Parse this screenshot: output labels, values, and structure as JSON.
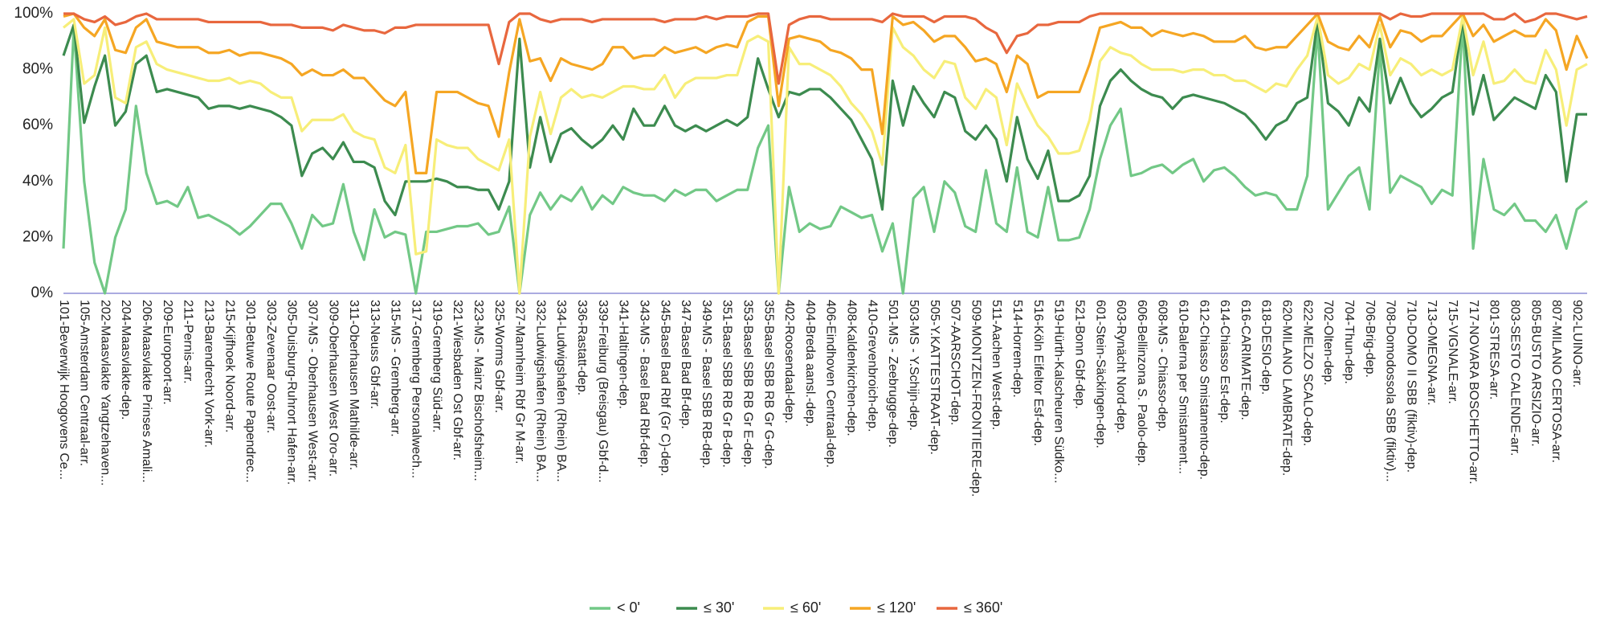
{
  "chart_data": {
    "type": "line",
    "categories": [
      "101-Beverwijk Hoogovens Ce...",
      null,
      "105-Amsterdam Centraal-arr.",
      null,
      "202-Maasvlakte Yangtzehaven...",
      null,
      "204-Maasvlakte-dep.",
      null,
      "206-Maasvlakte Prinses Amali...",
      null,
      "209-Europoort-arr.",
      null,
      "211-Pernis-arr.",
      null,
      "213-Barendrecht Vork-arr.",
      null,
      "215-Kijfhoek Noord-arr.",
      null,
      "301-Betuwe Route Papendrec...",
      null,
      "303-Zevenaar Oost-arr.",
      null,
      "305-Duisburg-Ruhrort Hafen-arr.",
      null,
      "307-MS - Oberhausen West-arr.",
      null,
      "309-Oberhausen West Oro-arr.",
      null,
      "311-Oberhausen Mathilde-arr.",
      null,
      "313-Neuss Gbf-arr.",
      null,
      "315-MS - Gremberg-arr.",
      null,
      "317-Gremberg Personalwech...",
      null,
      "319-Gremberg Süd-arr.",
      null,
      "321-Wiesbaden Ost Gbf-arr.",
      null,
      "323-MS - Mainz Bischofsheim...",
      null,
      "325-Worms Gbf-arr.",
      null,
      "327-Mannheim Rbf Gr M-arr.",
      null,
      "332-Ludwigshafen (Rhein) BA...",
      null,
      "334-Ludwigshafen (Rhein) BA...",
      null,
      "336-Rastatt-dep.",
      null,
      "339-Freiburg (Breisgau) Gbf-d...",
      null,
      "341-Haltingen-dep.",
      null,
      "343-MS - Basel Bad Rbf-dep.",
      null,
      "345-Basel Bad Rbf (Gr C)-dep.",
      null,
      "347-Basel Bad Bf-dep.",
      null,
      "349-MS - Basel SBB RB-dep.",
      null,
      "351-Basel SBB RB Gr B-dep.",
      null,
      "353-Basel SBB RB Gr E-dep.",
      null,
      "355-Basel SBB RB Gr G-dep.",
      null,
      "402-Roosendaal-dep.",
      null,
      "404-Breda aansl.-dep.",
      null,
      "406-Eindhoven Centraal-dep.",
      null,
      "408-Kaldenkirchen-dep.",
      null,
      "410-Grevenbroich-dep.",
      null,
      "501-MS - Zeebrugge-dep.",
      null,
      "503-MS - Y.Schijn-dep.",
      null,
      "505-Y.KATTESTRAAT-dep.",
      null,
      "507-AARSCHOT-dep.",
      null,
      "509-MONTZEN-FRONTIERE-dep.",
      null,
      "511-Aachen West-dep.",
      null,
      "514-Horrem-dep.",
      null,
      "516-Köln Eifeltor Esf-dep.",
      null,
      "519-Hürth-Kalscheuren Südko...",
      null,
      "521-Bonn Gbf-dep.",
      null,
      "601-Stein-Säckingen-dep.",
      null,
      "603-Rynächt Nord-dep.",
      null,
      "606-Bellinzona S. Paolo-dep.",
      null,
      "608-MS - Chiasso-dep.",
      null,
      "610-Balerna per Smistament...",
      null,
      "612-Chiasso Smistamento-dep.",
      null,
      "614-Chiasso Est-dep.",
      null,
      "616-CARIMATE-dep.",
      null,
      "618-DESIO-dep.",
      null,
      "620-MILANO LAMBRATE-dep.",
      null,
      "622-MELZO SCALO-dep.",
      null,
      "702-Olten-dep.",
      null,
      "704-Thun-dep.",
      null,
      "706-Brig-dep.",
      null,
      "708-Domodossola SBB (fiktiv)...",
      null,
      "710-DOMO II SBB (fiktiv)-dep.",
      null,
      "713-OMEGNA-arr.",
      null,
      "715-VIGNALE-arr.",
      null,
      "717-NOVARA BOSCHETTO-arr.",
      null,
      "801-STRESA-arr.",
      null,
      "803-SESTO CALENDE-arr.",
      null,
      "805-BUSTO ARSIZIO-arr.",
      null,
      "807-MILANO CERTOSA-arr.",
      null,
      "902-LUINO-arr.",
      null
    ],
    "series": [
      {
        "name": "< 0'",
        "color": "#72c886",
        "values": [
          16,
          95,
          40,
          11,
          0,
          20,
          30,
          67,
          43,
          32,
          33,
          31,
          38,
          27,
          28,
          26,
          24,
          21,
          24,
          28,
          32,
          32,
          25,
          16,
          28,
          24,
          25,
          39,
          22,
          12,
          30,
          20,
          22,
          21,
          0,
          22,
          22,
          23,
          24,
          24,
          25,
          21,
          22,
          31,
          0,
          28,
          36,
          30,
          35,
          33,
          38,
          30,
          35,
          32,
          38,
          36,
          35,
          35,
          33,
          37,
          35,
          37,
          37,
          33,
          35,
          37,
          37,
          52,
          60,
          0,
          38,
          22,
          25,
          23,
          24,
          31,
          29,
          27,
          28,
          15,
          25,
          0,
          34,
          38,
          22,
          40,
          36,
          24,
          22,
          44,
          25,
          22,
          45,
          22,
          20,
          38,
          19,
          19,
          20,
          30,
          48,
          60,
          66,
          42,
          43,
          45,
          46,
          43,
          46,
          48,
          40,
          44,
          45,
          42,
          38,
          35,
          36,
          35,
          30,
          30,
          42,
          95,
          30,
          36,
          42,
          45,
          30,
          88,
          36,
          42,
          40,
          38,
          32,
          37,
          35,
          97,
          16,
          48,
          30,
          28,
          32,
          26,
          26,
          22,
          28,
          16,
          30,
          33
        ]
      },
      {
        "name": "≤ 30'",
        "color": "#3c8b4f",
        "values": [
          85,
          96,
          61,
          74,
          85,
          60,
          65,
          82,
          85,
          72,
          73,
          72,
          71,
          70,
          66,
          67,
          67,
          66,
          67,
          66,
          65,
          63,
          60,
          42,
          50,
          52,
          48,
          54,
          47,
          47,
          45,
          33,
          28,
          40,
          40,
          40,
          41,
          40,
          38,
          38,
          37,
          37,
          30,
          40,
          91,
          45,
          63,
          47,
          57,
          59,
          55,
          52,
          55,
          60,
          55,
          66,
          60,
          60,
          67,
          60,
          58,
          60,
          58,
          60,
          62,
          60,
          63,
          84,
          73,
          63,
          72,
          71,
          73,
          73,
          70,
          66,
          62,
          55,
          48,
          30,
          76,
          60,
          74,
          68,
          63,
          72,
          70,
          58,
          55,
          60,
          55,
          40,
          63,
          48,
          41,
          51,
          33,
          33,
          35,
          42,
          67,
          76,
          80,
          76,
          73,
          71,
          70,
          66,
          70,
          71,
          70,
          69,
          68,
          66,
          64,
          60,
          55,
          60,
          62,
          68,
          70,
          98,
          68,
          65,
          60,
          70,
          65,
          91,
          68,
          77,
          68,
          63,
          66,
          70,
          72,
          98,
          64,
          78,
          62,
          66,
          70,
          68,
          66,
          78,
          72,
          40,
          64,
          64
        ]
      },
      {
        "name": "≤ 60'",
        "color": "#f7ee79",
        "values": [
          95,
          98,
          75,
          78,
          95,
          70,
          68,
          88,
          90,
          82,
          80,
          79,
          78,
          77,
          76,
          76,
          77,
          75,
          76,
          75,
          72,
          70,
          70,
          58,
          62,
          62,
          62,
          64,
          58,
          56,
          55,
          45,
          43,
          53,
          14,
          15,
          55,
          53,
          52,
          52,
          48,
          46,
          44,
          55,
          0,
          56,
          72,
          57,
          70,
          73,
          70,
          71,
          70,
          72,
          74,
          74,
          73,
          73,
          78,
          70,
          75,
          77,
          77,
          77,
          78,
          78,
          90,
          92,
          90,
          0,
          88,
          82,
          82,
          80,
          78,
          74,
          68,
          64,
          58,
          46,
          95,
          88,
          85,
          80,
          77,
          83,
          82,
          70,
          66,
          73,
          70,
          53,
          75,
          67,
          60,
          56,
          50,
          50,
          51,
          62,
          83,
          88,
          86,
          85,
          82,
          80,
          80,
          80,
          79,
          80,
          80,
          78,
          78,
          76,
          76,
          74,
          72,
          75,
          74,
          80,
          85,
          99,
          78,
          75,
          77,
          82,
          80,
          96,
          78,
          84,
          82,
          78,
          80,
          78,
          80,
          99,
          78,
          90,
          75,
          76,
          80,
          76,
          75,
          87,
          80,
          60,
          80,
          82
        ]
      },
      {
        "name": "≤ 120'",
        "color": "#f5a623",
        "values": [
          99,
          100,
          95,
          92,
          98,
          87,
          86,
          95,
          98,
          90,
          89,
          88,
          88,
          88,
          86,
          86,
          87,
          85,
          86,
          86,
          85,
          84,
          82,
          78,
          80,
          78,
          78,
          80,
          77,
          77,
          73,
          69,
          67,
          72,
          43,
          43,
          72,
          72,
          72,
          70,
          68,
          67,
          56,
          79,
          98,
          83,
          84,
          76,
          84,
          82,
          81,
          80,
          82,
          88,
          88,
          84,
          85,
          85,
          88,
          86,
          87,
          88,
          86,
          88,
          89,
          88,
          97,
          99,
          99,
          67,
          91,
          92,
          91,
          90,
          87,
          86,
          84,
          80,
          80,
          57,
          99,
          96,
          97,
          94,
          90,
          92,
          92,
          88,
          83,
          84,
          82,
          72,
          85,
          82,
          70,
          72,
          72,
          72,
          72,
          82,
          95,
          96,
          97,
          95,
          95,
          92,
          94,
          93,
          92,
          93,
          92,
          90,
          90,
          90,
          92,
          88,
          87,
          88,
          88,
          92,
          96,
          100,
          90,
          88,
          87,
          92,
          88,
          99,
          88,
          94,
          93,
          90,
          92,
          92,
          96,
          100,
          92,
          96,
          90,
          92,
          94,
          92,
          92,
          98,
          94,
          80,
          92,
          84
        ]
      },
      {
        "name": "≤ 360'",
        "color": "#e8673e",
        "values": [
          100,
          100,
          98,
          97,
          99,
          96,
          97,
          99,
          100,
          98,
          98,
          98,
          98,
          98,
          97,
          97,
          97,
          97,
          97,
          97,
          96,
          96,
          96,
          95,
          95,
          95,
          94,
          96,
          95,
          94,
          94,
          93,
          95,
          95,
          96,
          96,
          96,
          96,
          96,
          96,
          96,
          96,
          82,
          97,
          100,
          100,
          98,
          97,
          98,
          98,
          98,
          97,
          98,
          98,
          98,
          98,
          98,
          98,
          97,
          98,
          98,
          98,
          99,
          98,
          99,
          99,
          99,
          100,
          100,
          75,
          96,
          98,
          99,
          99,
          98,
          98,
          98,
          98,
          98,
          97,
          100,
          99,
          99,
          99,
          97,
          99,
          99,
          99,
          98,
          95,
          93,
          86,
          92,
          93,
          96,
          96,
          97,
          97,
          97,
          99,
          100,
          100,
          100,
          100,
          100,
          100,
          100,
          100,
          100,
          100,
          100,
          100,
          100,
          100,
          100,
          100,
          100,
          100,
          100,
          100,
          100,
          100,
          100,
          100,
          100,
          100,
          100,
          100,
          98,
          100,
          99,
          99,
          100,
          100,
          100,
          100,
          100,
          100,
          98,
          98,
          100,
          97,
          98,
          100,
          100,
          99,
          98,
          99
        ]
      }
    ],
    "ylim": [
      0,
      100
    ],
    "yticks": [
      {
        "value": 0,
        "label": "0%"
      },
      {
        "value": 20,
        "label": "20%"
      },
      {
        "value": 40,
        "label": "40%"
      },
      {
        "value": 60,
        "label": "60%"
      },
      {
        "value": 80,
        "label": "80%"
      },
      {
        "value": 100,
        "label": "100%"
      }
    ],
    "grid": false,
    "legend": "bottom"
  }
}
